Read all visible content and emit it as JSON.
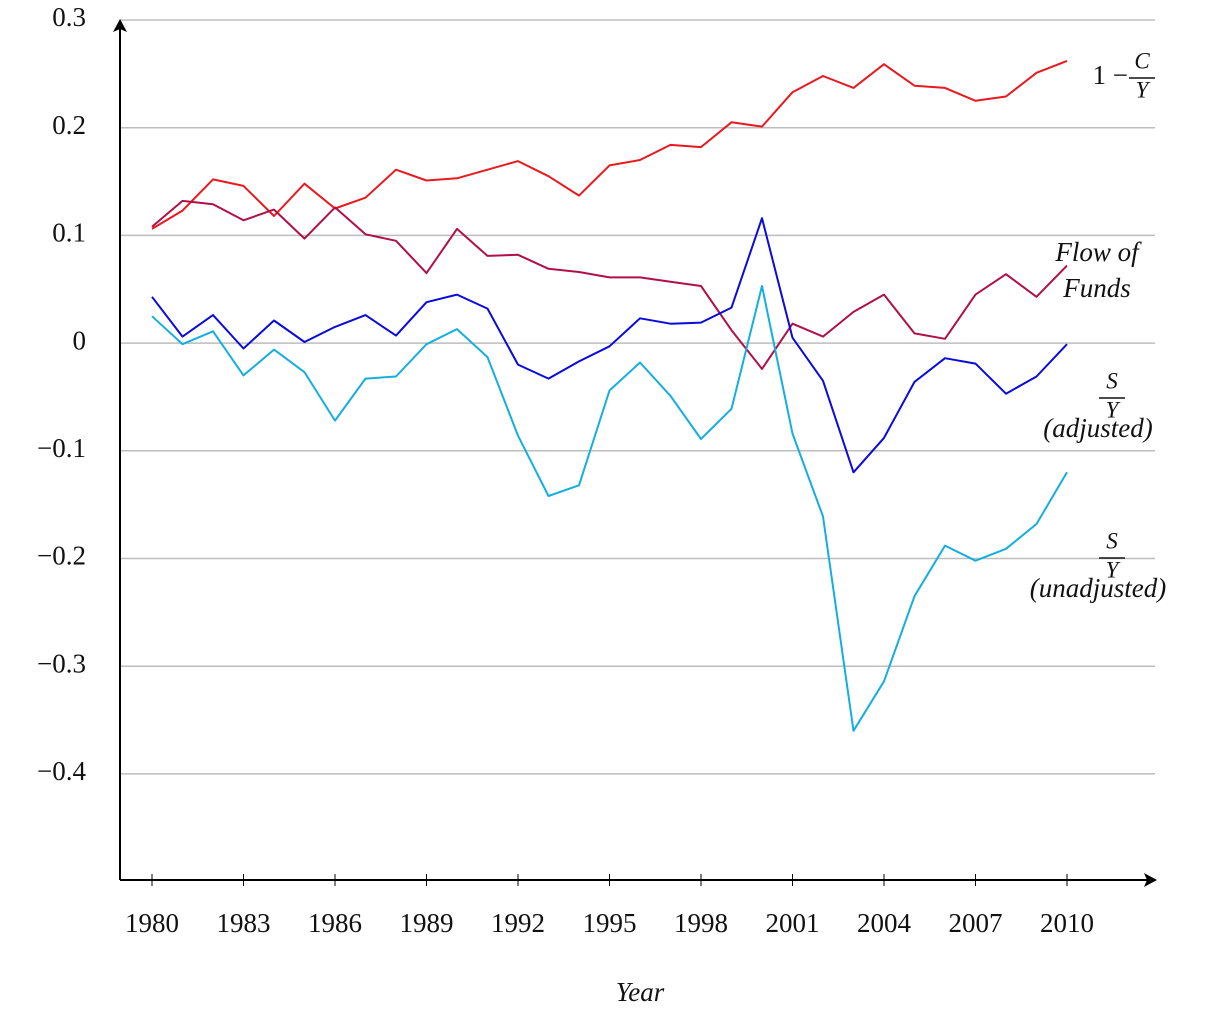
{
  "chart_data": {
    "type": "line",
    "xlabel": "Year",
    "x": [
      1980,
      1981,
      1982,
      1983,
      1984,
      1985,
      1986,
      1987,
      1988,
      1989,
      1990,
      1991,
      1992,
      1993,
      1994,
      1995,
      1996,
      1997,
      1998,
      1999,
      2000,
      2001,
      2002,
      2003,
      2004,
      2005,
      2006,
      2007,
      2008,
      2009,
      2010
    ],
    "xlim": [
      1979,
      2013
    ],
    "xticks": [
      1980,
      1983,
      1986,
      1989,
      1992,
      1995,
      1998,
      2001,
      2004,
      2007,
      2010
    ],
    "ylim": [
      -0.5,
      0.3
    ],
    "yticks": [
      {
        "value": -0.4,
        "label": "−0.4"
      },
      {
        "value": -0.3,
        "label": "−0.3"
      },
      {
        "value": -0.2,
        "label": "−0.2"
      },
      {
        "value": -0.1,
        "label": "−0.1"
      },
      0,
      0.1,
      0.2,
      0.3
    ],
    "grid": true,
    "series": [
      {
        "label": {
          "prefix": "1 −",
          "numerator": "C",
          "denominator": "Y"
        },
        "color": "#e8191f",
        "values": [
          0.106,
          0.123,
          0.152,
          0.146,
          0.118,
          0.148,
          0.125,
          0.135,
          0.161,
          0.151,
          0.153,
          0.161,
          0.169,
          0.155,
          0.137,
          0.165,
          0.17,
          0.184,
          0.182,
          0.205,
          0.201,
          0.233,
          0.248,
          0.237,
          0.259,
          0.239,
          0.237,
          0.225,
          0.229,
          0.251,
          0.262
        ]
      },
      {
        "label": {
          "lines": [
            "Flow of",
            "Funds"
          ]
        },
        "color": "#b0104a",
        "values": [
          0.108,
          0.132,
          0.129,
          0.114,
          0.124,
          0.097,
          0.126,
          0.101,
          0.095,
          0.065,
          0.106,
          0.081,
          0.082,
          0.069,
          0.066,
          0.061,
          0.061,
          0.057,
          0.053,
          0.012,
          -0.024,
          0.018,
          0.006,
          0.029,
          0.045,
          0.009,
          0.004,
          0.045,
          0.064,
          0.043,
          0.072
        ]
      },
      {
        "label": {
          "numerator": "S",
          "denominator": "Y",
          "note": "(adjusted)"
        },
        "color": "#0a0adc",
        "values": [
          0.043,
          0.006,
          0.026,
          -0.005,
          0.021,
          0.001,
          0.015,
          0.026,
          0.007,
          0.038,
          0.045,
          0.032,
          -0.02,
          -0.033,
          -0.017,
          -0.003,
          0.023,
          0.018,
          0.019,
          0.033,
          0.116,
          0.005,
          -0.035,
          -0.12,
          -0.088,
          -0.036,
          -0.014,
          -0.019,
          -0.047,
          -0.031,
          -0.001
        ]
      },
      {
        "label": {
          "numerator": "S",
          "denominator": "Y",
          "note": "(unadjusted)"
        },
        "color": "#15aee0",
        "values": [
          0.025,
          -0.001,
          0.011,
          -0.03,
          -0.006,
          -0.027,
          -0.072,
          -0.033,
          -0.031,
          -0.001,
          0.013,
          -0.013,
          -0.086,
          -0.142,
          -0.132,
          -0.044,
          -0.018,
          -0.049,
          -0.089,
          -0.061,
          0.053,
          -0.084,
          -0.161,
          -0.36,
          -0.314,
          -0.235,
          -0.188,
          -0.202,
          -0.191,
          -0.168,
          -0.12
        ]
      }
    ]
  }
}
